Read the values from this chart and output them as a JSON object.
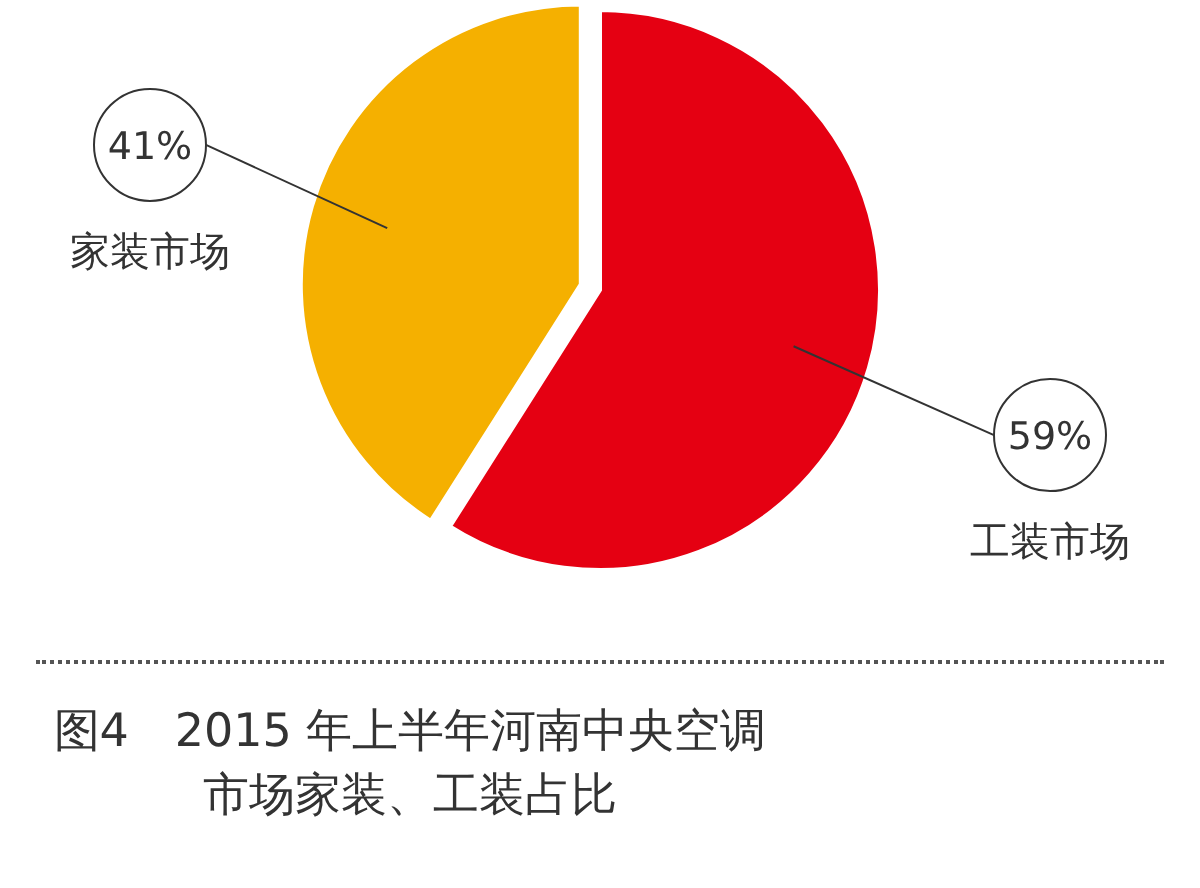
{
  "chart_data": {
    "type": "pie",
    "title": "图4　2015 年上半年河南中央空调市场家装、工装占比",
    "categories": [
      "工装市场",
      "家装市场"
    ],
    "values": [
      59,
      41
    ],
    "colors": [
      "#e50012",
      "#f5b000"
    ],
    "value_labels": [
      "59%",
      "41%"
    ],
    "legend": false
  }
}
